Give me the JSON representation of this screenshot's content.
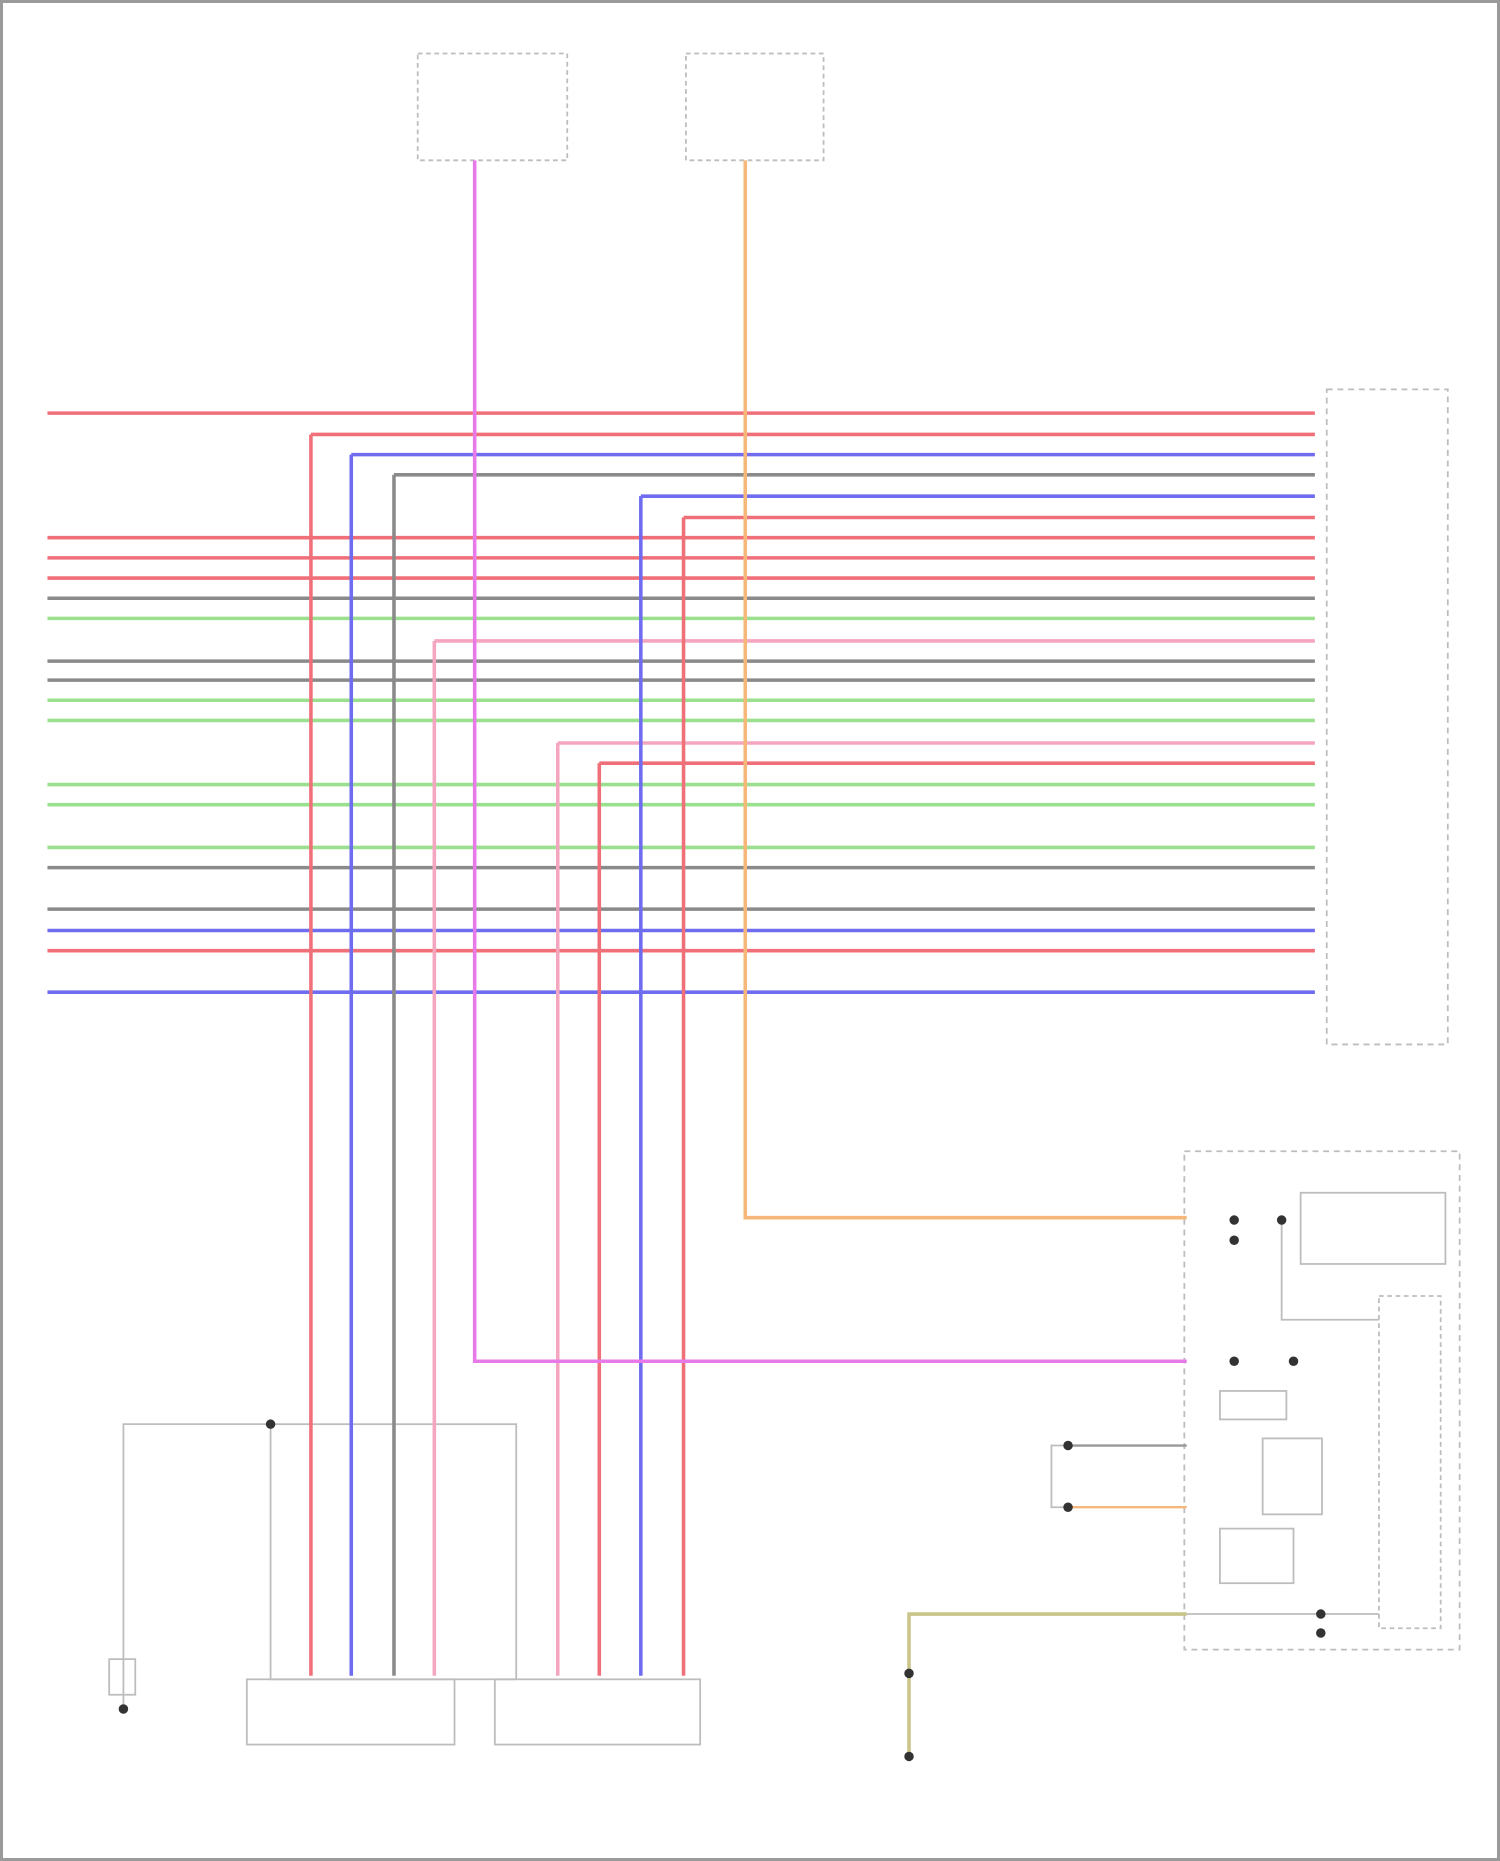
{
  "colors": {
    "red": "#f0707a",
    "pink": "#f4a6c0",
    "magenta": "#e77ae8",
    "blue": "#6f6cf0",
    "gray": "#8a8a8a",
    "green": "#9be08f",
    "orange": "#f6b77a",
    "olive": "#c9c58a",
    "outline": "#b9b9b9"
  },
  "harness": {
    "horizontal_wires": [
      "red",
      "red",
      "blue",
      "gray",
      "blue",
      "red",
      "red",
      "red",
      "red",
      "gray",
      "green",
      "pink",
      "gray",
      "gray",
      "green",
      "green",
      "pink",
      "red",
      "green",
      "green",
      "green",
      "gray",
      "gray",
      "blue",
      "red",
      "blue"
    ]
  },
  "vertical_feeds": [
    "red",
    "blue",
    "gray",
    "pink",
    "pink",
    "red",
    "blue",
    "red"
  ]
}
